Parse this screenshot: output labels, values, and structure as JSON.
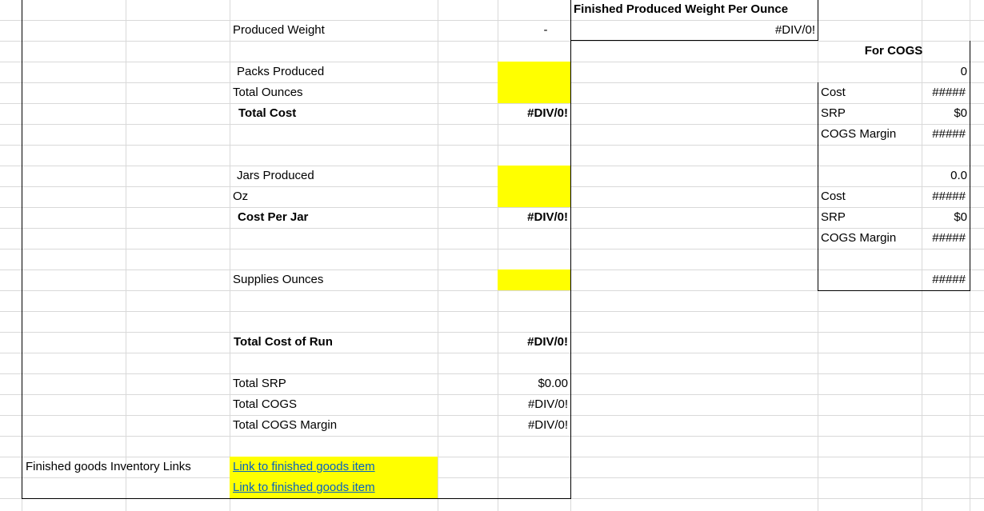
{
  "colors": {
    "highlight": "#ffff00",
    "gridline": "#d9d9d9",
    "hyperlink": "#0563c1"
  },
  "main": {
    "produced_weight_label": "Produced Weight",
    "produced_weight_value": "-",
    "packs_produced_label": "Packs Produced",
    "total_ounces_label": "Total Ounces",
    "total_cost_label": "Total Cost",
    "total_cost_value": "#DIV/0!",
    "jars_produced_label": "Jars Produced",
    "oz_label": "Oz",
    "cost_per_jar_label": "Cost Per Jar",
    "cost_per_jar_value": "#DIV/0!",
    "supplies_ounces_label": "Supplies Ounces",
    "total_cost_of_run_label": "Total Cost of Run",
    "total_cost_of_run_value": "#DIV/0!",
    "total_srp_label": "Total SRP",
    "total_srp_value": "$0.00",
    "total_cogs_label": "Total COGS",
    "total_cogs_value": "#DIV/0!",
    "total_cogs_margin_label": "Total COGS Margin",
    "total_cogs_margin_value": "#DIV/0!"
  },
  "weight_per_ounce": {
    "header": "Finished Produced Weight Per Ounce",
    "value": "#DIV/0!"
  },
  "cogs": {
    "header": "For COGS",
    "block1": {
      "top_value": "0",
      "cost_label": "Cost",
      "cost_value": "#####",
      "srp_label": "SRP",
      "srp_value": "$0",
      "margin_label": "COGS Margin",
      "margin_value": "#####"
    },
    "block2": {
      "top_value": "0.0",
      "cost_label": "Cost",
      "cost_value": "#####",
      "srp_label": "SRP",
      "srp_value": "$0",
      "margin_label": "COGS Margin",
      "margin_value": "#####"
    },
    "bottom_value": "#####"
  },
  "inventory": {
    "label": "Finished goods Inventory Links",
    "links": [
      "Link to finished goods item",
      "Link to finished goods item"
    ]
  }
}
